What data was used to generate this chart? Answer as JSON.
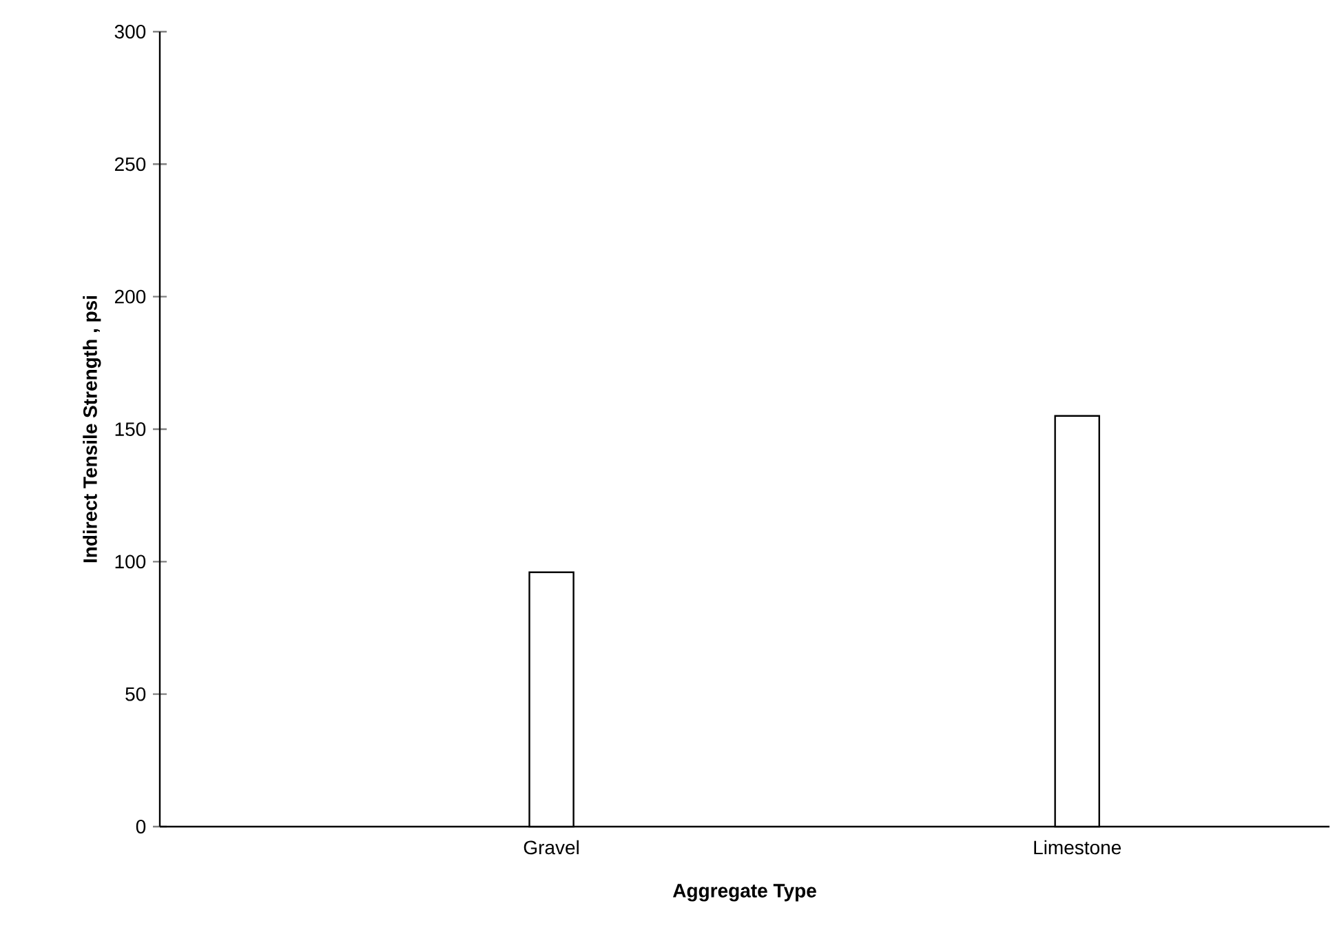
{
  "chart_data": {
    "type": "bar",
    "xlabel": "Aggregate Type",
    "ylabel": "Indirect Tensile Strength , psi",
    "categories": [
      "Gravel",
      "Limestone"
    ],
    "values": [
      96,
      155
    ],
    "color": "#ffffff",
    "ylim": [
      0,
      300
    ],
    "yticks": [
      0,
      50,
      100,
      150,
      200,
      250,
      300
    ]
  }
}
